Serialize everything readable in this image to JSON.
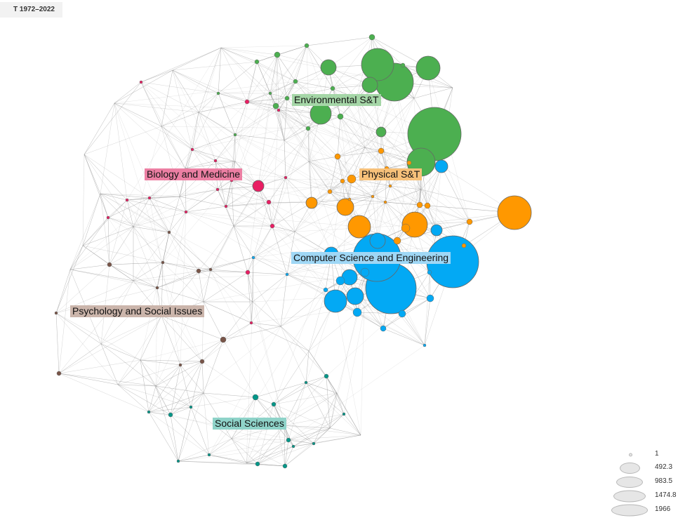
{
  "header": {
    "period_label": "T 1972–2022"
  },
  "clusters": [
    {
      "id": "env",
      "label": "Environmental S&T",
      "color": "#4caf50",
      "label_bg": "#a5d6a7"
    },
    {
      "id": "bio",
      "label": "Biology and Medicine",
      "color": "#e91e63",
      "label_bg": "#ec7fa3"
    },
    {
      "id": "phys",
      "label": "Physical S&T",
      "color": "#ff9800",
      "label_bg": "#f7c17a"
    },
    {
      "id": "cs",
      "label": "Computer Science and Engineering",
      "color": "#03a9f4",
      "label_bg": "#9fd7f5"
    },
    {
      "id": "psy",
      "label": "Psychology and Social Issues",
      "color": "#795548",
      "label_bg": "#cbb5ab"
    },
    {
      "id": "soc",
      "label": "Social Sciences",
      "color": "#009688",
      "label_bg": "#8fd3c9"
    }
  ],
  "legend": {
    "items": [
      {
        "label": "1"
      },
      {
        "label": "492.3"
      },
      {
        "label": "983.5"
      },
      {
        "label": "1474.8"
      },
      {
        "label": "1966"
      }
    ]
  }
}
